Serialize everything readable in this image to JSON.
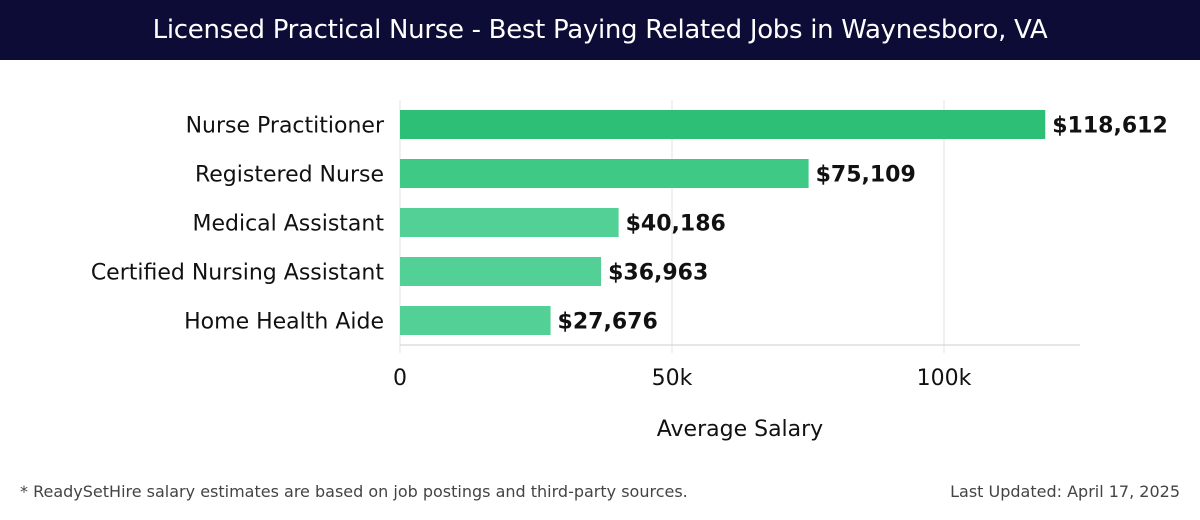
{
  "header": {
    "title": "Licensed Practical Nurse - Best Paying Related Jobs in Waynesboro, VA"
  },
  "chart_data": {
    "type": "bar",
    "orientation": "horizontal",
    "categories": [
      "Nurse Practitioner",
      "Registered Nurse",
      "Medical Assistant",
      "Certified Nursing Assistant",
      "Home Health Aide"
    ],
    "values": [
      118612,
      75109,
      40186,
      36963,
      27676
    ],
    "value_labels": [
      "$118,612",
      "$75,109",
      "$40,186",
      "$36,963",
      "$27,676"
    ],
    "xlabel": "Average Salary",
    "ylabel": "",
    "xlim": [
      0,
      125000
    ],
    "xticks": [
      0,
      50000,
      100000
    ],
    "xtick_labels": [
      "0",
      "50k",
      "100k"
    ],
    "grid": true,
    "colors": [
      "#2ebf76",
      "#3ec985",
      "#52d095",
      "#52d095",
      "#52d095"
    ]
  },
  "footer": {
    "note": "* ReadySetHire salary estimates are based on job postings and third-party sources.",
    "updated": "Last Updated: April 17, 2025"
  }
}
